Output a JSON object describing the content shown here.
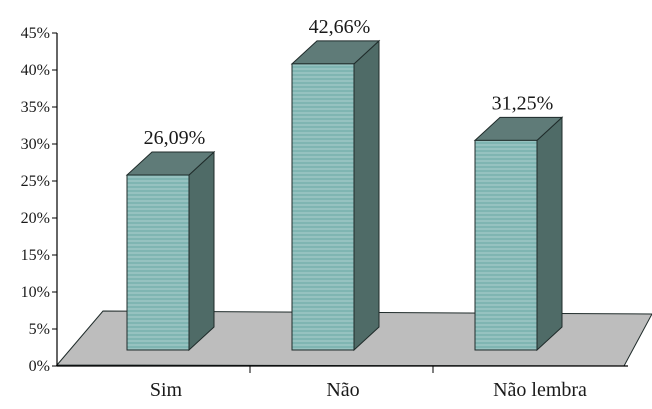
{
  "chart_data": {
    "type": "bar",
    "categories": [
      "Sim",
      "Não",
      "Não lembra"
    ],
    "values": [
      26.09,
      42.66,
      31.25
    ],
    "data_labels": [
      "26,09%",
      "42,66%",
      "31,25%"
    ],
    "title": "",
    "xlabel": "",
    "ylabel": "",
    "ylim": [
      0,
      45
    ],
    "yticks": [
      "0%",
      "5%",
      "10%",
      "15%",
      "20%",
      "25%",
      "30%",
      "35%",
      "40%",
      "45%"
    ],
    "three_d": true,
    "grid": false,
    "legend": "none",
    "colors": {
      "bar_front": "#7fb5b2",
      "bar_side": "#4f6b67",
      "bar_top": "#5f7b78",
      "floor": "#bdbdbd",
      "outline": "#1f2b2a"
    }
  }
}
